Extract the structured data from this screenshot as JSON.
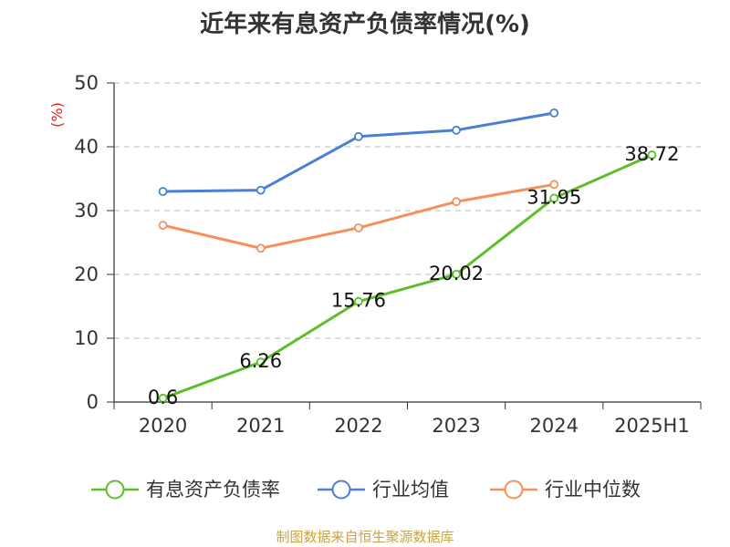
{
  "chart_data": {
    "type": "line",
    "title": "近年来有息资产负债率情况(%)",
    "ylabel": "(%)",
    "xlabel": "",
    "categories": [
      "2020",
      "2021",
      "2022",
      "2023",
      "2024",
      "2025H1"
    ],
    "ylim": [
      0,
      50
    ],
    "yticks": [
      0,
      10,
      20,
      30,
      40,
      50
    ],
    "grid": true,
    "legend_position": "bottom",
    "series": [
      {
        "name": "有息资产负债率",
        "color": "#5cbf2a",
        "values": [
          0.6,
          6.26,
          15.76,
          20.02,
          31.95,
          38.72
        ],
        "labels": [
          "0.6",
          "6.26",
          "15.76",
          "20.02",
          "31.95",
          "38.72"
        ]
      },
      {
        "name": "行业均值",
        "color": "#4a7fd6",
        "values": [
          33.0,
          33.2,
          41.6,
          42.6,
          45.3,
          null
        ]
      },
      {
        "name": "行业中位数",
        "color": "#f5905a",
        "values": [
          27.7,
          24.1,
          27.3,
          31.4,
          34.1,
          null
        ]
      }
    ]
  },
  "footer": {
    "source": "制图数据来自恒生聚源数据库"
  }
}
